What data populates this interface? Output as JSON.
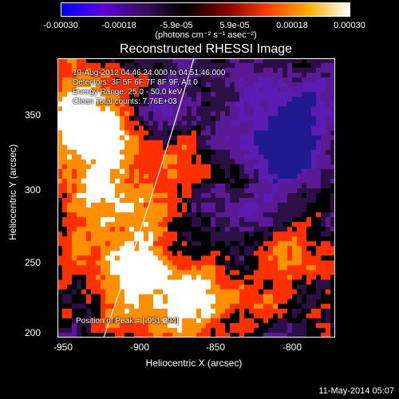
{
  "figure": {
    "title": "Reconstructed RHESSI Image",
    "colorbar": {
      "ticks": [
        "-0.00030",
        "-0.00018",
        "-5.9e-05",
        "5.9e-05",
        "0.00018",
        "0.00030"
      ],
      "units": "(photons cm⁻² s⁻¹ asec⁻²)"
    },
    "annotations": {
      "time": "19-Aug-2012 04:46:24.000 to 04:51:46.000",
      "detectors": "Detectors: 3F 5F 6F 7F 8F 9F, Att 0",
      "energy": "Energy Range: 25.0 - 50.0 keV",
      "clean": "Clean     Total counts: 7.76E+03",
      "peak": "Position of Peak = [-951,294]"
    },
    "axes": {
      "x_ticks": [
        "-950",
        "-900",
        "-850",
        "-800"
      ],
      "y_ticks": [
        "350",
        "300",
        "250",
        "200"
      ],
      "x_label": "Heliocentric X (arcsec)",
      "y_label": "Heliocentric Y (arcsec)"
    },
    "footer": "11-May-2014 05:07"
  },
  "chart_data": {
    "type": "heatmap",
    "title": "Reconstructed RHESSI Image",
    "xlabel": "Heliocentric X (arcsec)",
    "ylabel": "Heliocentric Y (arcsec)",
    "x_ticks": [
      -950,
      -900,
      -850,
      -800
    ],
    "y_ticks": [
      350,
      300,
      250,
      200
    ],
    "colorbar": {
      "ticks": [
        "-0.00030",
        "-0.00018",
        "-5.9e-05",
        "5.9e-05",
        "0.00018",
        "0.00030"
      ],
      "units": "(photons cm⁻² s⁻¹ asec⁻²)"
    },
    "peak_position": [
      -951,
      294
    ]
  },
  "colors": {
    "background": "#000000",
    "text": "#ffffff",
    "colorbar_stops": [
      "#0000ff",
      "#5d00d9",
      "#3a0d5d",
      "#000000",
      "#7f0000",
      "#ff3d00",
      "#ffae00",
      "#ffffff"
    ],
    "heatmap_palette": [
      "#1f1a8f",
      "#5b1bb2",
      "#5a1a96",
      "#2b0f45",
      "#000000",
      "#ff3000",
      "#ff8e00",
      "#ffffff"
    ]
  }
}
